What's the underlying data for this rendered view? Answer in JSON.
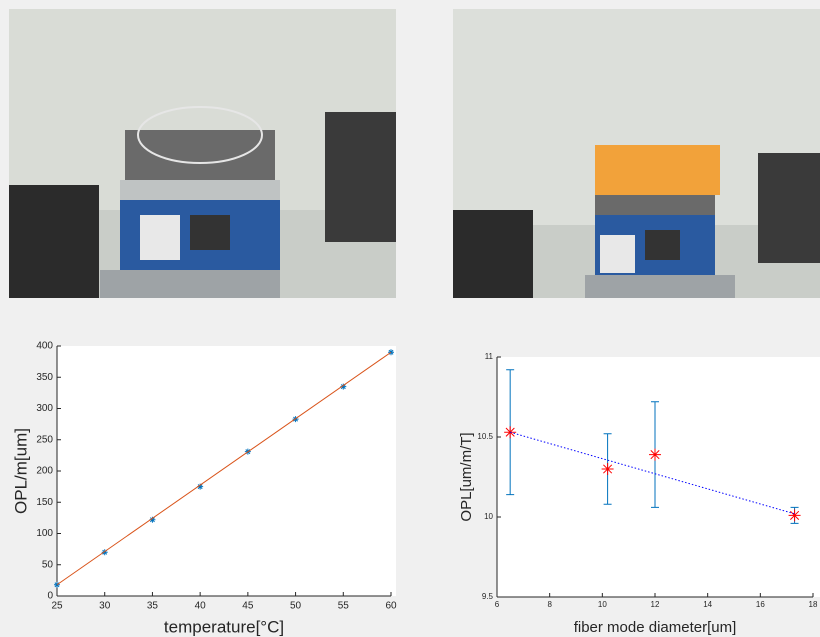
{
  "chart_data": [
    {
      "type": "scatter",
      "xlabel": "temperature[°C]",
      "ylabel": "OPL/m[um]",
      "xlim": [
        25,
        60
      ],
      "ylim": [
        0,
        400
      ],
      "xticks": [
        25,
        30,
        35,
        40,
        45,
        50,
        55,
        60
      ],
      "yticks": [
        0,
        50,
        100,
        150,
        200,
        250,
        300,
        350,
        400
      ],
      "series": [
        {
          "style": "marker",
          "color": "#0072bd",
          "x": [
            25,
            30,
            35,
            40,
            45,
            50,
            55,
            60
          ],
          "values": [
            18,
            70,
            122,
            175,
            231,
            283,
            335,
            390
          ]
        },
        {
          "style": "line",
          "color": "#d95319",
          "x": [
            25,
            60
          ],
          "values": [
            18,
            390
          ]
        }
      ]
    },
    {
      "type": "errorbar",
      "xlabel": "fiber mode diameter[um]",
      "ylabel": "OPL[um/m/T]",
      "xlim": [
        6,
        18
      ],
      "ylim": [
        9.5,
        11
      ],
      "xticks": [
        6,
        8,
        10,
        12,
        14,
        16,
        18
      ],
      "yticks": [
        9.5,
        10,
        10.5,
        11
      ],
      "series": [
        {
          "style": "marker",
          "color": "#ff0000",
          "error_color": "#0072bd",
          "x": [
            6.5,
            10.2,
            12,
            17.3
          ],
          "values": [
            10.53,
            10.3,
            10.39,
            10.01
          ],
          "errors": [
            0.39,
            0.22,
            0.33,
            0.05
          ]
        },
        {
          "style": "dotted",
          "color": "#0000ff",
          "x": [
            6.5,
            17.3
          ],
          "values": [
            10.53,
            10.02
          ]
        }
      ]
    }
  ]
}
